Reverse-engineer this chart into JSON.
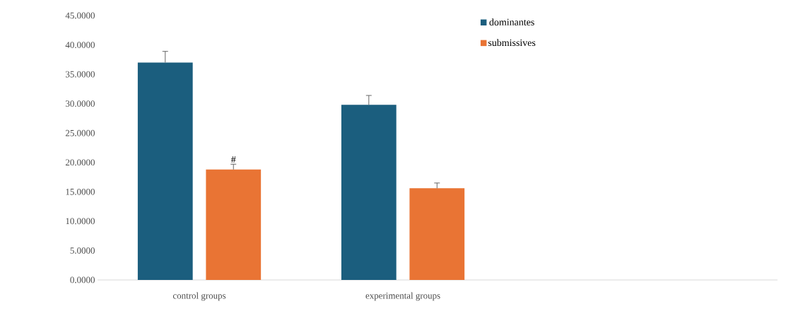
{
  "chart_data": {
    "type": "bar",
    "categories": [
      "control groups",
      "experimental groups"
    ],
    "series": [
      {
        "name": "dominantes",
        "color": "#1b5e7e",
        "values": [
          37.0,
          29.8
        ],
        "errors": [
          1.9,
          1.6
        ]
      },
      {
        "name": "submissives",
        "color": "#e97434",
        "values": [
          18.8,
          15.6
        ],
        "errors": [
          0.9,
          0.9
        ]
      }
    ],
    "ylim": [
      0,
      45
    ],
    "yticks": [
      {
        "value": 0,
        "label": "0.0000"
      },
      {
        "value": 5,
        "label": "5.0000"
      },
      {
        "value": 10,
        "label": "10.0000"
      },
      {
        "value": 15,
        "label": "15.0000"
      },
      {
        "value": 20,
        "label": "20.0000"
      },
      {
        "value": 25,
        "label": "25.0000"
      },
      {
        "value": 30,
        "label": "30.0000"
      },
      {
        "value": 35,
        "label": "35.0000"
      },
      {
        "value": 40,
        "label": "40.0000"
      },
      {
        "value": 45,
        "label": "45.0000"
      }
    ],
    "annotations": [
      "#"
    ],
    "legend": "top right"
  }
}
